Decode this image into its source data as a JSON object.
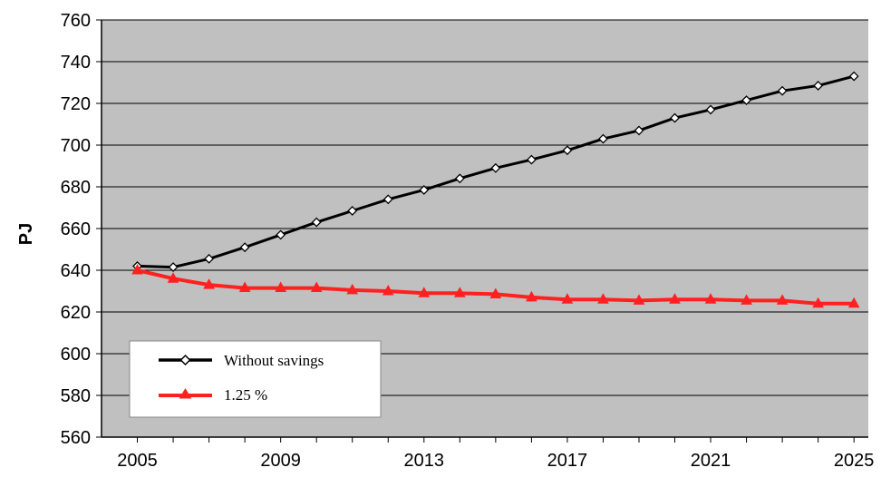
{
  "chart_data": {
    "type": "line",
    "title": "",
    "xlabel": "",
    "ylabel": "PJ",
    "ylim": [
      560,
      760
    ],
    "xlim": [
      2004,
      2025.4
    ],
    "yticks": [
      560,
      580,
      600,
      620,
      640,
      660,
      680,
      700,
      720,
      740,
      760
    ],
    "xticks": [
      2005,
      2009,
      2013,
      2017,
      2021,
      2025
    ],
    "grid": "horizontal",
    "legend_position": "bottom-left",
    "x": [
      2005,
      2006,
      2007,
      2008,
      2009,
      2010,
      2011,
      2012,
      2013,
      2014,
      2015,
      2016,
      2017,
      2018,
      2019,
      2020,
      2021,
      2022,
      2023,
      2024,
      2025
    ],
    "series": [
      {
        "name": "Without savings",
        "color": "#000000",
        "marker": "diamond",
        "values": [
          642,
          641.5,
          645.5,
          651,
          657,
          663,
          668.5,
          674,
          678.5,
          684,
          689,
          693,
          697.5,
          703,
          707,
          713,
          717,
          721.5,
          726,
          728.5,
          733
        ]
      },
      {
        "name": "1.25 %",
        "color": "#ff2020",
        "marker": "triangle",
        "values": [
          640,
          636,
          633,
          631.5,
          631.5,
          631.5,
          630.5,
          630,
          629,
          629,
          628.5,
          627,
          626,
          626,
          625.5,
          626,
          626,
          625.5,
          625.5,
          624,
          624
        ]
      }
    ]
  }
}
